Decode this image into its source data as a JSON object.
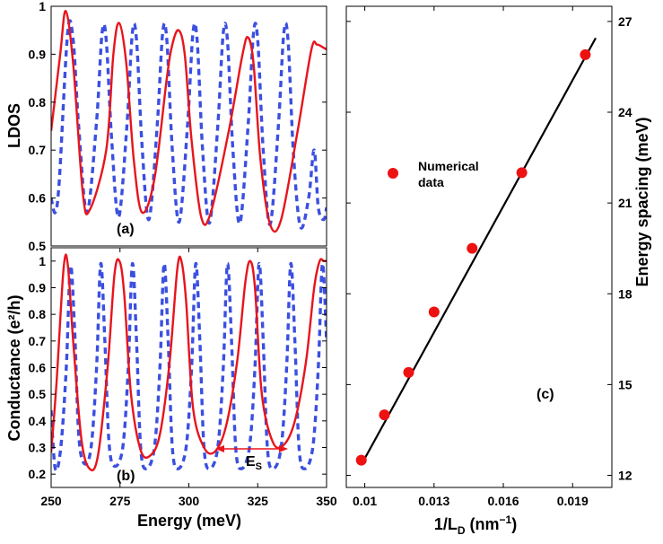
{
  "chart_data": [
    {
      "id": "a",
      "type": "line",
      "panel_label": "(a)",
      "ylabel": "LDOS",
      "xlabel": "",
      "xlim": [
        250,
        350
      ],
      "ylim": [
        0.5,
        1.0
      ],
      "yticks": [
        "0.5",
        "0.6",
        "0.7",
        "0.8",
        "0.9",
        "1"
      ],
      "xticks": [],
      "series": [
        {
          "name": "solid",
          "style": "solid",
          "color": "#e8141c",
          "x": [
            250,
            253.3,
            255.3,
            258,
            261.5,
            264,
            270,
            272.6,
            274.7,
            277.3,
            280,
            283,
            287.5,
            292,
            294,
            296.3,
            298.5,
            301,
            304.5,
            308,
            314.5,
            319.5,
            321.5,
            323.5,
            326,
            329.5,
            333.5,
            339.5,
            344.5,
            346.5,
            348.5,
            350
          ],
          "y": [
            0.74,
            0.9,
            0.99,
            0.88,
            0.61,
            0.575,
            0.7,
            0.9,
            0.965,
            0.88,
            0.68,
            0.57,
            0.64,
            0.85,
            0.92,
            0.95,
            0.9,
            0.72,
            0.56,
            0.57,
            0.74,
            0.9,
            0.935,
            0.88,
            0.68,
            0.545,
            0.555,
            0.74,
            0.91,
            0.92,
            0.915,
            0.91
          ]
        },
        {
          "name": "dashed",
          "style": "dashed",
          "color": "#3b4fe0",
          "x": [
            250,
            251.5,
            253,
            256,
            258,
            260,
            263,
            266.5,
            268.5,
            270,
            272,
            274.5,
            277.5,
            279.5,
            281,
            283,
            285.5,
            288.5,
            290.5,
            292,
            294,
            296.5,
            299.5,
            301.5,
            303,
            305,
            307.5,
            310.5,
            312.5,
            314,
            316,
            318.5,
            321.5,
            323.5,
            325,
            327,
            329.5,
            332.5,
            334.5,
            336,
            338,
            340.5,
            343.5,
            345.5,
            347,
            349,
            350
          ],
          "y": [
            0.6,
            0.57,
            0.64,
            0.945,
            0.93,
            0.75,
            0.57,
            0.76,
            0.945,
            0.93,
            0.72,
            0.56,
            0.75,
            0.945,
            0.93,
            0.71,
            0.555,
            0.75,
            0.945,
            0.93,
            0.7,
            0.55,
            0.75,
            0.945,
            0.93,
            0.7,
            0.548,
            0.75,
            0.945,
            0.93,
            0.7,
            0.547,
            0.75,
            0.945,
            0.93,
            0.7,
            0.545,
            0.75,
            0.945,
            0.93,
            0.69,
            0.54,
            0.6,
            0.7,
            0.58,
            0.555,
            0.58
          ]
        }
      ]
    },
    {
      "id": "b",
      "type": "line",
      "panel_label": "(b)",
      "ylabel": "Conductance (e²/h)",
      "xlabel": "Energy (meV)",
      "xlim": [
        250,
        350
      ],
      "ylim": [
        0.15,
        1.05
      ],
      "yticks": [
        "0.2",
        "0.3",
        "0.4",
        "0.5",
        "0.6",
        "0.7",
        "0.8",
        "0.9",
        "1"
      ],
      "xticks": [
        "250",
        "275",
        "300",
        "325",
        "350"
      ],
      "annotation": "E",
      "annotation_sub": "S",
      "series": [
        {
          "name": "solid",
          "style": "solid",
          "color": "#e8141c",
          "x": [
            250,
            252,
            254.5,
            256,
            258,
            261,
            264,
            267,
            270.5,
            273,
            274.8,
            276.5,
            279,
            282.5,
            286,
            289.5,
            293,
            295.8,
            297.3,
            299,
            301.5,
            305.5,
            309.5,
            313.5,
            317.5,
            320.5,
            322.3,
            324,
            326.5,
            330.5,
            334.5,
            338.5,
            342.5,
            345.5,
            347.5,
            349,
            350
          ],
          "y": [
            0.28,
            0.55,
            0.97,
            0.99,
            0.7,
            0.33,
            0.22,
            0.27,
            0.6,
            0.95,
            1.0,
            0.88,
            0.5,
            0.29,
            0.27,
            0.35,
            0.62,
            0.97,
            1.0,
            0.85,
            0.45,
            0.3,
            0.285,
            0.38,
            0.62,
            0.92,
            1.0,
            0.9,
            0.5,
            0.32,
            0.31,
            0.4,
            0.62,
            0.9,
            1.0,
            1.0,
            1.0
          ]
        },
        {
          "name": "dashed",
          "style": "dashed",
          "color": "#3b4fe0",
          "x": [
            250,
            251.5,
            253.5,
            255.5,
            257,
            258.5,
            260,
            262,
            264.5,
            266.5,
            268,
            269.5,
            271,
            273,
            276,
            278,
            279.5,
            281,
            282.5,
            284.5,
            287.5,
            289.5,
            291,
            292.5,
            294,
            296,
            299,
            301,
            302.5,
            304,
            305.5,
            307.5,
            310.5,
            312.5,
            314,
            315.5,
            317,
            319,
            322,
            324,
            325.5,
            327,
            328.5,
            330.5,
            333.5,
            335.5,
            337,
            338.5,
            340,
            342,
            345,
            347,
            348.5,
            350
          ],
          "y": [
            0.44,
            0.22,
            0.3,
            0.6,
            0.98,
            0.75,
            0.35,
            0.24,
            0.3,
            0.6,
            0.99,
            0.7,
            0.32,
            0.23,
            0.3,
            0.6,
            0.99,
            0.7,
            0.3,
            0.22,
            0.3,
            0.6,
            0.99,
            0.7,
            0.3,
            0.22,
            0.3,
            0.6,
            0.99,
            0.7,
            0.3,
            0.22,
            0.3,
            0.6,
            0.99,
            0.7,
            0.3,
            0.22,
            0.3,
            0.6,
            0.99,
            0.7,
            0.3,
            0.22,
            0.3,
            0.6,
            0.99,
            0.7,
            0.3,
            0.22,
            0.3,
            0.6,
            0.99,
            0.7
          ]
        }
      ]
    },
    {
      "id": "c",
      "type": "scatter",
      "panel_label": "(c)",
      "ylabel": "Energy spacing (meV)",
      "xlabel": "1/L",
      "xlabel_sub": "D",
      "xlabel_unit_pre": " (nm",
      "xlabel_unit_sup": "−1",
      "xlabel_unit_post": ")",
      "xlim": [
        0.0092,
        0.0207
      ],
      "ylim": [
        11.6,
        27.5
      ],
      "xticks": [
        "0.01",
        "0.013",
        "0.016",
        "0.019"
      ],
      "yticks": [
        "12",
        "15",
        "18",
        "21",
        "24",
        "27"
      ],
      "legend": "Numerical data",
      "legend_line1": "Numerical",
      "legend_line2": "data",
      "points": {
        "x": [
          0.00985,
          0.01085,
          0.0119,
          0.013,
          0.01465,
          0.0168,
          0.01955
        ],
        "y": [
          12.5,
          14.0,
          15.4,
          17.4,
          19.5,
          22.0,
          25.9
        ]
      },
      "fit": {
        "x": [
          0.00985,
          0.02
        ],
        "y": [
          12.35,
          26.45
        ]
      }
    }
  ]
}
